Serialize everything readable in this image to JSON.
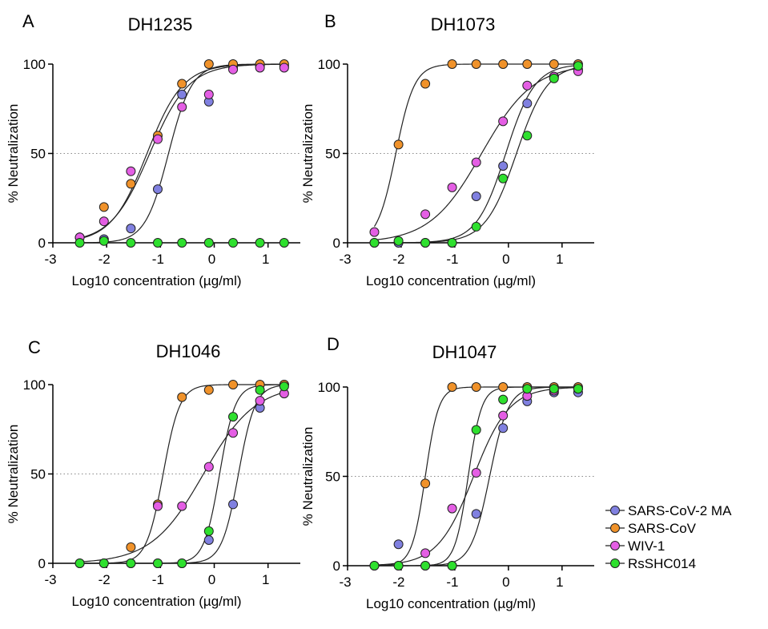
{
  "figure": {
    "x_unit_note": "x values are Log10 concentration (ug/ml); y values are % Neutralization; curves are 4-parameter logistic fits",
    "series_colors": {
      "SARS-CoV-2 MA": "#8080e0",
      "SARS-CoV": "#f0922a",
      "WIV-1": "#e45ee4",
      "RsSHC014": "#2ee02e"
    },
    "legend": [
      "SARS-CoV-2 MA",
      "SARS-CoV",
      "WIV-1",
      "RsSHC014"
    ]
  },
  "chart_data": [
    {
      "type": "scatter",
      "panel_letter": "A",
      "title": "DH1235",
      "xlabel": "Log10 concentration (µg/ml)",
      "ylabel": "% Neutralization",
      "xlim": [
        -3,
        1.6
      ],
      "ylim": [
        0,
        100
      ],
      "xticks": [
        -3,
        -2,
        -1,
        0,
        1
      ],
      "yticks": [
        0,
        50,
        100
      ],
      "reference_line": 50,
      "series": [
        {
          "name": "SARS-CoV-2 MA",
          "x": [
            -2.5,
            -2.05,
            -1.55,
            -1.05,
            -0.6,
            -0.1,
            0.35,
            0.85,
            1.3
          ],
          "y": [
            3,
            2,
            8,
            30,
            83,
            79,
            98,
            99,
            99
          ],
          "fit": {
            "ic50": -0.85,
            "hill": 2.0,
            "bottom": 0,
            "top": 100
          }
        },
        {
          "name": "SARS-CoV",
          "x": [
            -2.5,
            -2.05,
            -1.55,
            -1.05,
            -0.6,
            -0.1,
            0.35,
            0.85,
            1.3
          ],
          "y": [
            3,
            20,
            33,
            60,
            89,
            100,
            100,
            100,
            100
          ],
          "fit": {
            "ic50": -1.25,
            "hill": 1.3,
            "bottom": 0,
            "top": 100
          }
        },
        {
          "name": "WIV-1",
          "x": [
            -2.5,
            -2.05,
            -1.55,
            -1.05,
            -0.6,
            -0.1,
            0.35,
            0.85,
            1.3
          ],
          "y": [
            3,
            12,
            40,
            58,
            76,
            83,
            97,
            98,
            98
          ],
          "fit": {
            "ic50": -1.2,
            "hill": 1.2,
            "bottom": 0,
            "top": 100
          }
        },
        {
          "name": "RsSHC014",
          "x": [
            -2.5,
            -2.05,
            -1.55,
            -1.05,
            -0.6,
            -0.1,
            0.35,
            0.85,
            1.3
          ],
          "y": [
            0,
            1,
            0,
            0,
            0,
            0,
            0,
            0,
            0
          ],
          "fit": {
            "ic50": 5,
            "hill": 1,
            "bottom": 0,
            "top": 0
          }
        }
      ]
    },
    {
      "type": "scatter",
      "panel_letter": "B",
      "title": "DH1073",
      "xlabel": "Log10 concentration (µg/ml)",
      "ylabel": "% Neutralization",
      "xlim": [
        -3,
        1.6
      ],
      "ylim": [
        0,
        100
      ],
      "xticks": [
        -3,
        -2,
        -1,
        0,
        1
      ],
      "yticks": [
        0,
        50,
        100
      ],
      "reference_line": 50,
      "series": [
        {
          "name": "SARS-CoV-2 MA",
          "x": [
            -2.5,
            -2.05,
            -1.55,
            -1.05,
            -0.6,
            -0.1,
            0.35,
            0.85,
            1.3
          ],
          "y": [
            0,
            0,
            0,
            0,
            26,
            43,
            78,
            93,
            97
          ],
          "fit": {
            "ic50": -0.05,
            "hill": 1.6,
            "bottom": 0,
            "top": 100
          }
        },
        {
          "name": "SARS-CoV",
          "x": [
            -2.05,
            -1.55,
            -1.05,
            -0.6,
            -0.1,
            0.35,
            0.85,
            1.3
          ],
          "y": [
            55,
            89,
            100,
            100,
            100,
            100,
            100,
            100
          ],
          "fit": {
            "ic50": -2.1,
            "hill": 2.5,
            "bottom": 0,
            "top": 100
          }
        },
        {
          "name": "WIV-1",
          "x": [
            -2.5,
            -1.55,
            -1.05,
            -0.6,
            -0.1,
            0.35,
            0.85,
            1.3
          ],
          "y": [
            6,
            16,
            31,
            45,
            68,
            88,
            93,
            96
          ],
          "fit": {
            "ic50": -0.5,
            "hill": 0.9,
            "bottom": 0,
            "top": 100
          }
        },
        {
          "name": "RsSHC014",
          "x": [
            -2.5,
            -2.05,
            -1.55,
            -1.05,
            -0.6,
            -0.1,
            0.35,
            0.85,
            1.3
          ],
          "y": [
            0,
            1,
            0,
            0,
            9,
            36,
            60,
            92,
            99
          ],
          "fit": {
            "ic50": 0.15,
            "hill": 1.5,
            "bottom": 0,
            "top": 100
          }
        }
      ]
    },
    {
      "type": "scatter",
      "panel_letter": "C",
      "title": "DH1046",
      "xlabel": "Log10 concentration (µg/ml)",
      "ylabel": "% Neutralization",
      "xlim": [
        -3,
        1.6
      ],
      "ylim": [
        0,
        100
      ],
      "xticks": [
        -3,
        -2,
        -1,
        0,
        1
      ],
      "yticks": [
        0,
        50,
        100
      ],
      "reference_line": 50,
      "series": [
        {
          "name": "SARS-CoV-2 MA",
          "x": [
            -2.5,
            -2.05,
            -1.55,
            -1.05,
            -0.6,
            -0.1,
            0.35,
            0.85,
            1.3
          ],
          "y": [
            0,
            0,
            0,
            0,
            0,
            13,
            33,
            87,
            100
          ],
          "fit": {
            "ic50": 0.45,
            "hill": 2.8,
            "bottom": 0,
            "top": 100
          }
        },
        {
          "name": "SARS-CoV",
          "x": [
            -1.55,
            -1.05,
            -0.6,
            -0.1,
            0.35,
            0.85,
            1.3
          ],
          "y": [
            9,
            33,
            93,
            97,
            100,
            100,
            100
          ],
          "fit": {
            "ic50": -0.95,
            "hill": 2.8,
            "bottom": 0,
            "top": 100
          }
        },
        {
          "name": "WIV-1",
          "x": [
            -1.05,
            -0.6,
            -0.1,
            0.35,
            0.85,
            1.3
          ],
          "y": [
            32,
            32,
            54,
            73,
            91,
            95
          ],
          "fit": {
            "ic50": -0.2,
            "hill": 0.9,
            "bottom": 0,
            "top": 100
          }
        },
        {
          "name": "RsSHC014",
          "x": [
            -2.5,
            -2.05,
            -1.55,
            -1.05,
            -0.6,
            -0.1,
            0.35,
            0.85,
            1.3
          ],
          "y": [
            0,
            0,
            0,
            0,
            0,
            18,
            82,
            97,
            99
          ],
          "fit": {
            "ic50": 0.1,
            "hill": 3,
            "bottom": 0,
            "top": 100
          }
        }
      ]
    },
    {
      "type": "scatter",
      "panel_letter": "D",
      "title": "DH1047",
      "xlabel": "Log10 concentration (µg/ml)",
      "ylabel": "% Neutralization",
      "xlim": [
        -3,
        1.6
      ],
      "ylim": [
        0,
        100
      ],
      "xticks": [
        -3,
        -2,
        -1,
        0,
        1
      ],
      "yticks": [
        0,
        50,
        100
      ],
      "reference_line": 50,
      "series": [
        {
          "name": "SARS-CoV-2 MA",
          "x": [
            -2.05,
            -1.55,
            -1.05,
            -0.6,
            -0.1,
            0.35,
            0.85,
            1.3
          ],
          "y": [
            12,
            0,
            0,
            29,
            77,
            92,
            97,
            97
          ],
          "fit": {
            "ic50": -0.35,
            "hill": 2.5,
            "bottom": 0,
            "top": 100
          }
        },
        {
          "name": "SARS-CoV",
          "x": [
            -2.5,
            -2.05,
            -1.55,
            -1.05,
            -0.6,
            -0.1,
            0.35,
            0.85,
            1.3
          ],
          "y": [
            0,
            0,
            46,
            100,
            100,
            100,
            100,
            100,
            100
          ],
          "fit": {
            "ic50": -1.55,
            "hill": 3.5,
            "bottom": 0,
            "top": 100
          }
        },
        {
          "name": "WIV-1",
          "x": [
            -1.55,
            -1.05,
            -0.6,
            -0.1,
            0.35,
            0.85,
            1.3
          ],
          "y": [
            7,
            32,
            52,
            84,
            95,
            98,
            99
          ],
          "fit": {
            "ic50": -0.65,
            "hill": 1.3,
            "bottom": 0,
            "top": 100
          }
        },
        {
          "name": "RsSHC014",
          "x": [
            -2.5,
            -2.05,
            -1.55,
            -1.05,
            -0.6,
            -0.1,
            0.35,
            0.85,
            1.3
          ],
          "y": [
            0,
            0,
            0,
            0,
            76,
            93,
            99,
            99,
            99
          ],
          "fit": {
            "ic50": -0.75,
            "hill": 3.5,
            "bottom": 0,
            "top": 100
          }
        }
      ]
    }
  ]
}
